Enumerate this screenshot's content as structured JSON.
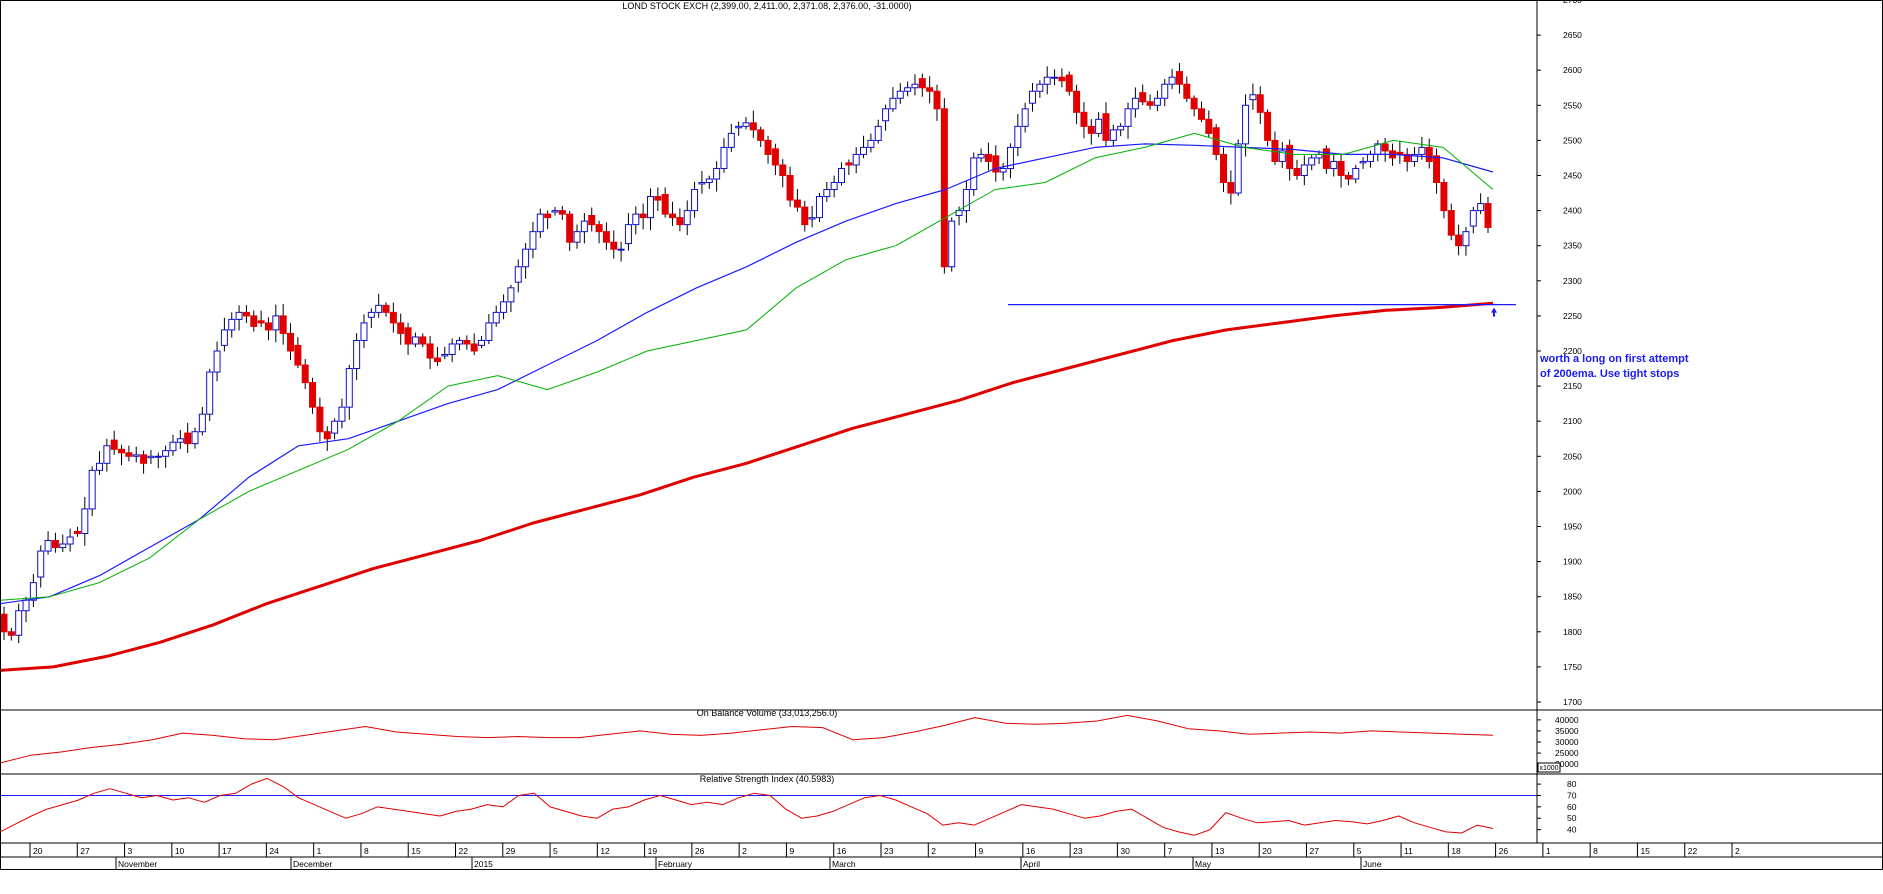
{
  "chart_data": [
    {
      "type": "candlestick",
      "title": "LOND STOCK EXCH (2,399.00, 2,411.00, 2,371.08, 2,376.00, -31.0000)",
      "ylim": [
        1690,
        2700
      ],
      "y_ticks": [
        "2700",
        "2650",
        "2600",
        "2550",
        "2500",
        "2450",
        "2400",
        "2350",
        "2300",
        "2250",
        "2200",
        "2150",
        "2100",
        "2050",
        "2000",
        "1950",
        "1900",
        "1850",
        "1800",
        "1750",
        "1700"
      ],
      "candle_closes": [
        1800,
        1795,
        1830,
        1845,
        1870,
        1915,
        1930,
        1920,
        1925,
        1935,
        1940,
        1975,
        2030,
        2040,
        2065,
        2060,
        2055,
        2050,
        2052,
        2040,
        2050,
        2050,
        2058,
        2070,
        2075,
        2068,
        2085,
        2110,
        2170,
        2200,
        2230,
        2245,
        2255,
        2250,
        2235,
        2240,
        2230,
        2250,
        2225,
        2200,
        2180,
        2155,
        2120,
        2085,
        2075,
        2100,
        2120,
        2175,
        2215,
        2240,
        2255,
        2265,
        2255,
        2240,
        2225,
        2210,
        2220,
        2210,
        2190,
        2185,
        2195,
        2210,
        2215,
        2210,
        2200,
        2215,
        2240,
        2255,
        2270,
        2290,
        2320,
        2345,
        2370,
        2395,
        2390,
        2400,
        2395,
        2355,
        2370,
        2385,
        2380,
        2370,
        2355,
        2345,
        2345,
        2380,
        2395,
        2390,
        2420,
        2415,
        2395,
        2390,
        2380,
        2400,
        2430,
        2440,
        2445,
        2460,
        2490,
        2510,
        2520,
        2525,
        2515,
        2500,
        2480,
        2465,
        2450,
        2415,
        2405,
        2380,
        2390,
        2420,
        2430,
        2440,
        2460,
        2465,
        2480,
        2490,
        2500,
        2520,
        2545,
        2560,
        2570,
        2575,
        2580,
        2575,
        2570,
        2545,
        2320,
        2385,
        2400,
        2430,
        2475,
        2480,
        2470,
        2455,
        2460,
        2490,
        2520,
        2545,
        2570,
        2580,
        2590,
        2590,
        2585,
        2570,
        2540,
        2520,
        2510,
        2530,
        2500,
        2515,
        2520,
        2545,
        2560,
        2555,
        2550,
        2560,
        2580,
        2590,
        2580,
        2560,
        2545,
        2530,
        2510,
        2480,
        2440,
        2425,
        2495,
        2550,
        2565,
        2540,
        2500,
        2470,
        2485,
        2460,
        2450,
        2465,
        2475,
        2480,
        2460,
        2470,
        2450,
        2445,
        2460,
        2470,
        2480,
        2495,
        2485,
        2475,
        2480,
        2470,
        2480,
        2490,
        2470,
        2440,
        2400,
        2365,
        2350,
        2370,
        2400,
        2410,
        2376
      ],
      "ema_20_sample": [
        1845,
        1850,
        1870,
        1905,
        1960,
        2000,
        2030,
        2060,
        2100,
        2150,
        2165,
        2145,
        2170,
        2200,
        2215,
        2230,
        2290,
        2330,
        2350,
        2390,
        2430,
        2440,
        2475,
        2490,
        2510,
        2490,
        2480,
        2480,
        2500,
        2490,
        2430
      ],
      "ema_50_sample": [
        1840,
        1850,
        1880,
        1920,
        1960,
        2020,
        2065,
        2075,
        2100,
        2125,
        2145,
        2180,
        2215,
        2255,
        2290,
        2320,
        2355,
        2385,
        2410,
        2430,
        2460,
        2475,
        2490,
        2495,
        2493,
        2490,
        2487,
        2480,
        2480,
        2475,
        2455
      ],
      "ema_200_sample": [
        1745,
        1750,
        1765,
        1785,
        1810,
        1840,
        1865,
        1890,
        1910,
        1930,
        1955,
        1975,
        1995,
        2020,
        2040,
        2065,
        2090,
        2110,
        2130,
        2155,
        2175,
        2195,
        2215,
        2230,
        2240,
        2250,
        2258,
        2262,
        2268
      ],
      "annotation": [
        "worth a long on first attempt",
        "of 200ema. Use tight stops"
      ]
    },
    {
      "type": "line",
      "title": "On Balance Volume (33,013,256.0)",
      "y_ticks": [
        "40000",
        "35000",
        "30000",
        "25000",
        "20000"
      ],
      "unit_box": "x1000",
      "series": [
        {
          "values": [
            20500,
            24000,
            25500,
            27500,
            29000,
            31000,
            34000,
            33000,
            31500,
            31000,
            33000,
            35000,
            37000,
            34500,
            33500,
            32500,
            32000,
            32500,
            32000,
            32000,
            33500,
            35000,
            33500,
            33000,
            34000,
            35500,
            37000,
            36500,
            31000,
            32000,
            34500,
            37500,
            41000,
            38500,
            38000,
            38500,
            39500,
            42000,
            39500,
            36000,
            35000,
            33500,
            34000,
            34500,
            34000,
            35000,
            34500,
            34000,
            33500,
            33013
          ]
        }
      ]
    },
    {
      "type": "line",
      "title": "Relative Strength Index (40.5983)",
      "y_ticks": [
        "80",
        "70",
        "60",
        "50",
        "40"
      ],
      "ylim": [
        30,
        88
      ],
      "reference_level": 70,
      "series": [
        {
          "values": [
            38,
            45,
            52,
            58,
            62,
            66,
            72,
            76,
            72,
            68,
            70,
            66,
            68,
            64,
            70,
            72,
            80,
            85,
            78,
            68,
            62,
            56,
            50,
            54,
            60,
            58,
            56,
            54,
            52,
            56,
            58,
            62,
            60,
            70,
            72,
            60,
            56,
            52,
            50,
            58,
            60,
            66,
            70,
            66,
            62,
            64,
            62,
            68,
            72,
            70,
            58,
            50,
            52,
            56,
            62,
            68,
            70,
            66,
            60,
            54,
            44,
            46,
            44,
            50,
            56,
            62,
            60,
            58,
            54,
            50,
            52,
            56,
            58,
            50,
            42,
            38,
            35,
            40,
            55,
            50,
            46,
            47,
            48,
            44,
            46,
            48,
            47,
            45,
            48,
            52,
            46,
            42,
            38,
            37,
            44,
            41
          ]
        }
      ]
    }
  ],
  "x_axis": {
    "day_ticks": [
      "20",
      "27",
      "3",
      "10",
      "17",
      "24",
      "1",
      "8",
      "15",
      "22",
      "29",
      "5",
      "12",
      "19",
      "26",
      "2",
      "9",
      "16",
      "23",
      "2",
      "9",
      "16",
      "23",
      "30",
      "7",
      "13",
      "20",
      "27",
      "5",
      "11",
      "18",
      "26",
      "1",
      "8",
      "15",
      "22",
      "2"
    ],
    "month_labels": [
      "November",
      "December",
      "2015",
      "February",
      "March",
      "April",
      "May",
      "June"
    ]
  },
  "colors": {
    "up_candle": "#1010c8",
    "down_candle": "#e00000",
    "ema_short": "#00b000",
    "ema_mid": "#1a1aff",
    "ema_200": "#e00000",
    "support_line": "#1a1aff",
    "rsi_line": "#e00000",
    "obv_line": "#e00000"
  }
}
